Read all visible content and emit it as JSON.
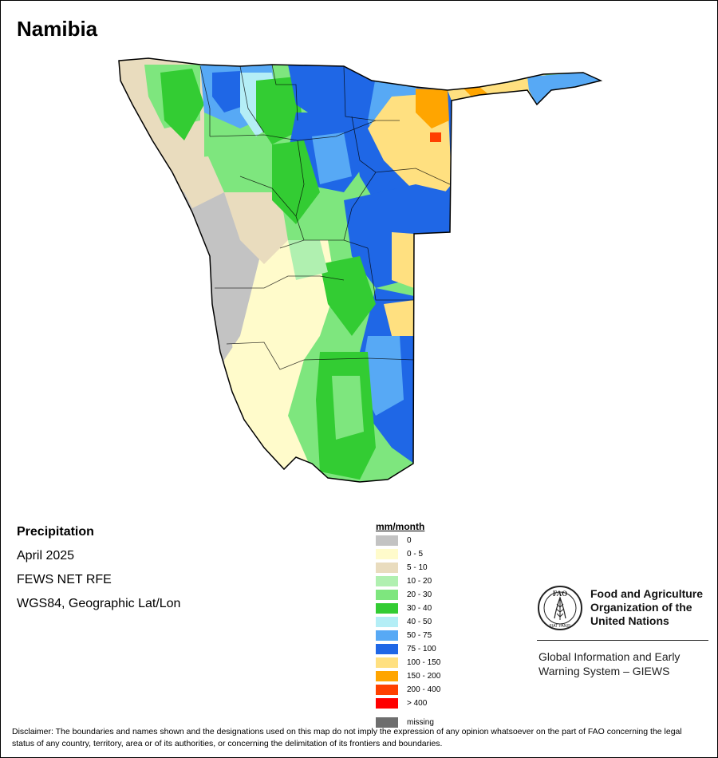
{
  "map": {
    "title": "Namibia"
  },
  "info": {
    "heading": "Precipitation",
    "date": "April 2025",
    "source": "FEWS NET RFE",
    "projection": "WGS84, Geographic Lat/Lon"
  },
  "legend": {
    "title": "mm/month",
    "items": [
      {
        "label": "0",
        "color": "#c3c3c3"
      },
      {
        "label": "0 - 5",
        "color": "#fffbcb"
      },
      {
        "label": "5 - 10",
        "color": "#e9dcbe"
      },
      {
        "label": "10 - 20",
        "color": "#b0f0b0"
      },
      {
        "label": "20 - 30",
        "color": "#7ee67e"
      },
      {
        "label": "30 - 40",
        "color": "#33cc33"
      },
      {
        "label": "40 - 50",
        "color": "#b4eef6"
      },
      {
        "label": "50 - 75",
        "color": "#57a9f5"
      },
      {
        "label": "75 - 100",
        "color": "#1f67e6"
      },
      {
        "label": "100 - 150",
        "color": "#ffe080"
      },
      {
        "label": "150 - 200",
        "color": "#ffa500"
      },
      {
        "label": "200 - 400",
        "color": "#ff4000"
      },
      {
        "label": "> 400",
        "color": "#ff0000"
      }
    ],
    "missing": {
      "label": "missing",
      "color": "#6e6e6e"
    }
  },
  "org": {
    "name": "Food and Agriculture Organization of the United Nations",
    "system": "Global Information and Early Warning System – GIEWS",
    "logo_letters": "FAO",
    "logo_motto": "FIAT PANIS"
  },
  "disclaimer": "Disclaimer: The boundaries and names shown and the designations used on this map do not imply the expression of any opinion whatsoever on the part of FAO concerning the legal status of any country, territory, area or of its authorities, or concerning the delimitation of its frontiers and boundaries."
}
